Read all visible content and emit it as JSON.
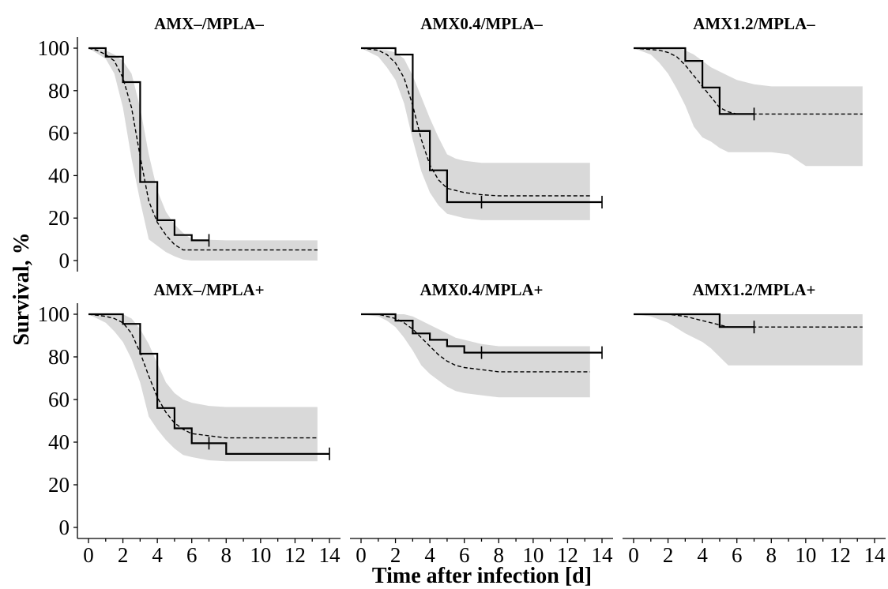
{
  "chart_data": {
    "type": "line",
    "ylabel": "Survival, %",
    "xlabel": "Time after infection [d]",
    "xlim": [
      0,
      14
    ],
    "ylim": [
      0,
      100
    ],
    "yticks": [
      0,
      20,
      40,
      60,
      80,
      100
    ],
    "xticks": [
      0,
      2,
      4,
      6,
      8,
      10,
      12,
      14
    ],
    "grid": false,
    "legend": "none",
    "colors": {
      "observed": "#000000",
      "model": "#000000",
      "band": "#d9d9d9"
    },
    "panels": [
      {
        "title": "AMX–/MPLA–",
        "observed": {
          "x": [
            0,
            1,
            1,
            2,
            2,
            3,
            3,
            4,
            4,
            5,
            5,
            6,
            6,
            7
          ],
          "y": [
            100,
            100,
            96,
            96,
            84,
            84,
            37,
            37,
            19,
            19,
            12,
            12,
            9.5,
            9.5
          ]
        },
        "censored": [
          {
            "x": 7,
            "y": 9.5
          }
        ],
        "model": {
          "x": [
            0,
            0.5,
            1,
            1.5,
            2,
            2.5,
            3,
            3.5,
            4,
            4.5,
            5,
            5.5,
            6,
            7,
            8,
            10,
            13.3
          ],
          "y": [
            100,
            99,
            97,
            94,
            86,
            72,
            49,
            28,
            18,
            12,
            7.5,
            5,
            5,
            5,
            5,
            5,
            5
          ]
        },
        "band_upper": {
          "x": [
            0,
            1,
            1.5,
            2,
            2.5,
            3,
            3.5,
            4,
            4.5,
            5,
            5.5,
            6,
            8,
            13.3
          ],
          "y": [
            100,
            99,
            97,
            94,
            88,
            72,
            50,
            33,
            23,
            17,
            13,
            10,
            9.5,
            9.5
          ]
        },
        "band_lower": {
          "x": [
            0,
            1,
            1.5,
            2,
            2.5,
            3,
            3.5,
            4,
            4.5,
            5,
            5.5,
            6,
            8,
            13.3
          ],
          "y": [
            100,
            95,
            88,
            72,
            48,
            28,
            10,
            7,
            4,
            2,
            0.5,
            0,
            0,
            0
          ]
        }
      },
      {
        "title": "AMX0.4/MPLA–",
        "observed": {
          "x": [
            0,
            2,
            2,
            3,
            3,
            4,
            4,
            5,
            5,
            7,
            7,
            14
          ],
          "y": [
            100,
            100,
            97,
            97,
            61,
            61,
            42.5,
            42.5,
            27.5,
            27.5,
            27.5,
            27.5
          ]
        },
        "censored": [
          {
            "x": 7,
            "y": 27.5
          },
          {
            "x": 14,
            "y": 27.5
          }
        ],
        "model": {
          "x": [
            0,
            1,
            1.5,
            2,
            2.5,
            3,
            3.5,
            4,
            4.5,
            5,
            5.5,
            6,
            7,
            8,
            10,
            13.3
          ],
          "y": [
            100,
            99,
            97,
            93,
            86,
            73,
            57,
            45,
            38,
            34,
            33,
            32,
            31,
            30.5,
            30.5,
            30.5
          ]
        },
        "band_upper": {
          "x": [
            0,
            1.5,
            2,
            2.5,
            3,
            3.5,
            4,
            4.5,
            5,
            5.5,
            6,
            7,
            8,
            13.3
          ],
          "y": [
            100,
            99,
            98,
            95,
            87,
            77,
            67,
            58,
            50,
            48,
            47,
            46,
            46,
            46
          ]
        },
        "band_lower": {
          "x": [
            0,
            1,
            1.5,
            2,
            2.5,
            3,
            3.5,
            4,
            4.5,
            5,
            5.5,
            6,
            7,
            8,
            13.3
          ],
          "y": [
            100,
            96,
            91,
            85,
            74,
            57,
            42,
            32,
            26,
            22,
            21,
            20,
            19,
            19,
            19
          ]
        }
      },
      {
        "title": "AMX1.2/MPLA–",
        "observed": {
          "x": [
            0,
            3,
            3,
            4,
            4,
            5,
            5,
            7
          ],
          "y": [
            100,
            100,
            94,
            94,
            81.5,
            81.5,
            69,
            69
          ]
        },
        "censored": [
          {
            "x": 7,
            "y": 69
          }
        ],
        "model": {
          "x": [
            0,
            1.5,
            2,
            2.5,
            3,
            3.5,
            4,
            4.5,
            5,
            5.5,
            6,
            7,
            8,
            10,
            13.3
          ],
          "y": [
            100,
            99,
            98,
            96,
            92,
            87,
            82,
            77,
            72,
            70,
            69,
            69,
            69,
            69,
            69
          ]
        },
        "band_upper": {
          "x": [
            0,
            2.5,
            3,
            3.5,
            4,
            4.5,
            5,
            5.5,
            6,
            7,
            8,
            13.3
          ],
          "y": [
            100,
            100,
            99,
            97,
            94,
            91,
            89,
            87,
            85,
            83,
            82,
            82
          ]
        },
        "band_lower": {
          "x": [
            0,
            1,
            1.5,
            2,
            2.5,
            3,
            3.5,
            4,
            4.5,
            5,
            5.5,
            6,
            7,
            8,
            9,
            10,
            13.3
          ],
          "y": [
            100,
            97,
            93,
            88,
            81,
            73,
            63,
            58,
            56,
            53,
            51,
            51,
            51,
            51,
            50,
            44.5,
            44.5
          ]
        }
      },
      {
        "title": "AMX–/MPLA+",
        "observed": {
          "x": [
            0,
            2,
            2,
            3,
            3,
            4,
            4,
            5,
            5,
            6,
            6,
            8,
            8,
            14
          ],
          "y": [
            100,
            100,
            95.5,
            95.5,
            81.5,
            81.5,
            56,
            56,
            46.5,
            46.5,
            39.5,
            39.5,
            34.5,
            34.5
          ]
        },
        "censored": [
          {
            "x": 7,
            "y": 39.5
          },
          {
            "x": 14,
            "y": 34.5
          }
        ],
        "model": {
          "x": [
            0,
            1,
            1.5,
            2,
            2.5,
            3,
            3.5,
            4,
            4.5,
            5,
            5.5,
            6,
            7,
            8,
            10,
            13.3
          ],
          "y": [
            100,
            99,
            98,
            96,
            91,
            82,
            71,
            61,
            54,
            49,
            46,
            44,
            43,
            42,
            42,
            42
          ]
        },
        "band_upper": {
          "x": [
            0,
            2,
            2.5,
            3,
            3.5,
            4,
            4.5,
            5,
            5.5,
            6,
            7,
            8,
            13.3
          ],
          "y": [
            100,
            100,
            98,
            93,
            86,
            77,
            68,
            63,
            60,
            58.5,
            57,
            56.5,
            56.5
          ]
        },
        "band_lower": {
          "x": [
            0,
            1,
            1.5,
            2,
            2.5,
            3,
            3.5,
            4,
            4.5,
            5,
            5.5,
            6,
            7,
            8,
            13.3
          ],
          "y": [
            100,
            96,
            92,
            87,
            79,
            68,
            52,
            46,
            41,
            37,
            34,
            33,
            31.5,
            31,
            31
          ]
        }
      },
      {
        "title": "AMX0.4/MPLA+",
        "observed": {
          "x": [
            0,
            2,
            2,
            3,
            3,
            4,
            4,
            5,
            5,
            6,
            6,
            7,
            7,
            14
          ],
          "y": [
            100,
            100,
            97,
            97,
            91,
            91,
            88,
            88,
            85,
            85,
            82,
            82,
            82,
            82
          ]
        },
        "censored": [
          {
            "x": 7,
            "y": 82
          },
          {
            "x": 14,
            "y": 82
          }
        ],
        "model": {
          "x": [
            0,
            1,
            1.5,
            2,
            2.5,
            3,
            3.5,
            4,
            4.5,
            5,
            5.5,
            6,
            7,
            8,
            10,
            13.3
          ],
          "y": [
            100,
            100,
            99,
            98,
            96,
            93,
            89,
            85,
            81,
            78,
            76,
            75,
            74,
            73,
            73,
            73
          ]
        },
        "band_upper": {
          "x": [
            0,
            2.5,
            3,
            3.5,
            4,
            4.5,
            5,
            5.5,
            6,
            7,
            8,
            13.3
          ],
          "y": [
            100,
            100,
            99,
            97,
            95,
            93,
            91,
            89,
            88,
            86,
            85,
            85
          ]
        },
        "band_lower": {
          "x": [
            0,
            1,
            1.5,
            2,
            2.5,
            3,
            3.5,
            4,
            4.5,
            5,
            5.5,
            6,
            7,
            8,
            13.3
          ],
          "y": [
            100,
            99,
            97,
            94,
            89,
            83,
            76,
            72,
            69,
            66,
            64,
            63,
            62,
            61,
            61
          ]
        }
      },
      {
        "title": "AMX1.2/MPLA+",
        "observed": {
          "x": [
            0,
            5,
            5,
            7
          ],
          "y": [
            100,
            100,
            94,
            94
          ]
        },
        "censored": [
          {
            "x": 7,
            "y": 94
          }
        ],
        "model": {
          "x": [
            0,
            2,
            3,
            3.5,
            4,
            4.5,
            5,
            5.5,
            6,
            7,
            8,
            10,
            13.3
          ],
          "y": [
            100,
            100,
            99,
            98,
            97,
            96,
            95,
            94,
            94,
            94,
            94,
            94,
            94
          ]
        },
        "band_upper": {
          "x": [
            0,
            13.3
          ],
          "y": [
            100,
            100
          ]
        },
        "band_lower": {
          "x": [
            0,
            1,
            2,
            3,
            4,
            4.5,
            5,
            5.5,
            6,
            7,
            13.3
          ],
          "y": [
            100,
            99,
            96,
            91,
            87,
            84,
            80,
            76,
            76,
            76,
            76
          ]
        }
      }
    ]
  }
}
